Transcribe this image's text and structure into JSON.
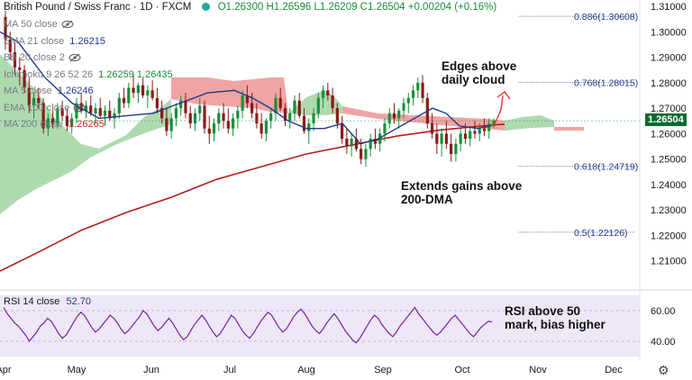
{
  "header": {
    "symbol": "British Pound / Swiss Franc · 1D · FXCM",
    "ohlc": "O1.26300 H1.26596 L1.26209 C1.26504 +0.00204 (+0.16%)"
  },
  "legend": [
    {
      "label": "MA 50 close",
      "value": "",
      "value_class": "val-dark",
      "icon": "eye-slash-icon"
    },
    {
      "label": "EMA 21 close",
      "value": "1.26215",
      "value_class": "val-blue",
      "icon": ""
    },
    {
      "label": "BB 20 close 2",
      "value": "",
      "value_class": "val-dark",
      "icon": "eye-slash-icon"
    },
    {
      "label": "Ichimoku 9 26 52 26",
      "value": "1.26259  1.26435",
      "value_class": "val-green",
      "icon": ""
    },
    {
      "label": "MA 5 close",
      "value": "1.26246",
      "value_class": "val-blue",
      "icon": ""
    },
    {
      "label": "EMA 100 close",
      "value": "",
      "value_class": "val-dark",
      "icon": "eye-slash-icon"
    },
    {
      "label": "MA 200 close",
      "value": "1.26265",
      "value_class": "val-red",
      "icon": ""
    }
  ],
  "rsi_legend": {
    "label": "RSI 14 close",
    "value": "52.70"
  },
  "annotations": {
    "cloud": "Edges above\ndaily cloud",
    "dma": "Extends gains above\n200-DMA",
    "rsi": "RSI above 50\nmark, bias higher"
  },
  "colors": {
    "bull": "#1a8f3a",
    "bear": "#8b1a1a",
    "ema21": "#1e3a8a",
    "ma200": "#b71c1c",
    "cloud_bull": "#a5d6a7",
    "cloud_bear": "#ef9a9a",
    "rsi_line": "#7b1fa2",
    "rsi_band": "#ede7f6",
    "fib": "#1e3a8a",
    "price_badge": "#0b6b2e"
  },
  "chart_data": {
    "type": "candlestick",
    "x_months": [
      "Apr",
      "May",
      "Jun",
      "Jul",
      "Aug",
      "Sep",
      "Oct",
      "Nov",
      "Dec"
    ],
    "y_ticks": [
      1.21,
      1.22,
      1.23,
      1.24,
      1.25,
      1.26,
      1.27,
      1.28,
      1.29,
      1.3,
      1.31
    ],
    "ylim": [
      1.2,
      1.3125
    ],
    "last_price": "1.26504",
    "fib_levels": [
      {
        "label": "0.886(1.30608)",
        "value": 1.30608
      },
      {
        "label": "0.768(1.28015)",
        "value": 1.28015
      },
      {
        "label": "0.618(1.24719)",
        "value": 1.24719
      },
      {
        "label": "0.5(1.22126)",
        "value": 1.22126
      }
    ],
    "ma200": {
      "name": "MA 200",
      "points": [
        [
          0,
          1.206
        ],
        [
          40,
          1.213
        ],
        [
          90,
          1.222
        ],
        [
          140,
          1.229
        ],
        [
          190,
          1.235
        ],
        [
          240,
          1.242
        ],
        [
          290,
          1.247
        ],
        [
          340,
          1.252
        ],
        [
          390,
          1.2555
        ],
        [
          440,
          1.259
        ],
        [
          490,
          1.2615
        ],
        [
          550,
          1.2635
        ],
        [
          560,
          1.2637
        ]
      ]
    },
    "ema21": {
      "name": "EMA 21",
      "points": [
        [
          0,
          1.3
        ],
        [
          20,
          1.296
        ],
        [
          50,
          1.282
        ],
        [
          80,
          1.272
        ],
        [
          110,
          1.266
        ],
        [
          140,
          1.267
        ],
        [
          170,
          1.268
        ],
        [
          200,
          1.272
        ],
        [
          230,
          1.276
        ],
        [
          260,
          1.277
        ],
        [
          280,
          1.274
        ],
        [
          300,
          1.27
        ],
        [
          320,
          1.265
        ],
        [
          340,
          1.262
        ],
        [
          360,
          1.262
        ],
        [
          380,
          1.264
        ],
        [
          400,
          1.256
        ],
        [
          420,
          1.258
        ],
        [
          440,
          1.262
        ],
        [
          460,
          1.266
        ],
        [
          480,
          1.27
        ],
        [
          495,
          1.268
        ],
        [
          510,
          1.263
        ],
        [
          530,
          1.262
        ],
        [
          545,
          1.263
        ]
      ]
    },
    "rsi": {
      "ylim": [
        30,
        70
      ],
      "ticks": [
        40,
        60
      ],
      "band": [
        30,
        70
      ],
      "last": 52.7,
      "values": [
        62,
        58,
        55,
        52,
        50,
        47,
        44,
        40,
        43,
        46,
        50,
        52,
        55,
        53,
        49,
        45,
        42,
        44,
        48,
        52,
        56,
        59,
        57,
        53,
        49,
        46,
        48,
        51,
        54,
        57,
        55,
        52,
        48,
        45,
        47,
        50,
        53,
        56,
        60,
        58,
        54,
        50,
        47,
        49,
        52,
        55,
        52,
        48,
        44,
        41,
        43,
        47,
        51,
        54,
        57,
        54,
        50,
        46,
        43,
        45,
        49,
        53,
        57,
        55,
        51,
        47,
        44,
        42,
        45,
        49,
        53,
        56,
        59,
        57,
        53,
        49,
        46,
        48,
        52,
        56,
        59,
        61,
        58,
        54,
        50,
        47,
        45,
        48,
        52,
        55,
        58,
        55,
        51,
        47,
        44,
        41,
        39,
        42,
        46,
        50,
        54,
        57,
        55,
        51,
        48,
        45,
        43,
        46,
        50,
        53,
        56,
        59,
        62,
        58,
        55,
        52,
        49,
        46,
        44,
        46,
        49,
        52,
        55,
        57,
        54,
        51,
        48,
        45,
        43,
        46,
        49,
        51,
        53,
        52.7
      ]
    },
    "candles": [
      [
        1.3058,
        1.3082,
        1.293,
        1.297
      ],
      [
        1.297,
        1.3,
        1.289,
        1.292
      ],
      [
        1.292,
        1.296,
        1.283,
        1.286
      ],
      [
        1.286,
        1.29,
        1.279,
        1.285
      ],
      [
        1.285,
        1.287,
        1.276,
        1.278
      ],
      [
        1.278,
        1.282,
        1.268,
        1.271
      ],
      [
        1.271,
        1.276,
        1.266,
        1.274
      ],
      [
        1.274,
        1.278,
        1.27,
        1.272
      ],
      [
        1.272,
        1.274,
        1.26,
        1.262
      ],
      [
        1.262,
        1.268,
        1.259,
        1.266
      ],
      [
        1.266,
        1.27,
        1.262,
        1.264
      ],
      [
        1.264,
        1.272,
        1.262,
        1.27
      ],
      [
        1.27,
        1.273,
        1.265,
        1.267
      ],
      [
        1.267,
        1.27,
        1.261,
        1.263
      ],
      [
        1.263,
        1.268,
        1.26,
        1.266
      ],
      [
        1.266,
        1.274,
        1.264,
        1.272
      ],
      [
        1.272,
        1.276,
        1.268,
        1.269
      ],
      [
        1.269,
        1.273,
        1.266,
        1.271
      ],
      [
        1.271,
        1.275,
        1.267,
        1.268
      ],
      [
        1.268,
        1.272,
        1.264,
        1.27
      ],
      [
        1.27,
        1.274,
        1.266,
        1.267
      ],
      [
        1.267,
        1.271,
        1.263,
        1.269
      ],
      [
        1.269,
        1.273,
        1.265,
        1.266
      ],
      [
        1.266,
        1.27,
        1.262,
        1.268
      ],
      [
        1.268,
        1.276,
        1.266,
        1.274
      ],
      [
        1.274,
        1.278,
        1.27,
        1.272
      ],
      [
        1.272,
        1.28,
        1.27,
        1.278
      ],
      [
        1.278,
        1.283,
        1.274,
        1.276
      ],
      [
        1.276,
        1.28,
        1.272,
        1.279
      ],
      [
        1.279,
        1.282,
        1.274,
        1.275
      ],
      [
        1.275,
        1.279,
        1.27,
        1.277
      ],
      [
        1.277,
        1.281,
        1.273,
        1.274
      ],
      [
        1.274,
        1.278,
        1.268,
        1.27
      ],
      [
        1.27,
        1.273,
        1.264,
        1.266
      ],
      [
        1.266,
        1.27,
        1.259,
        1.261
      ],
      [
        1.261,
        1.268,
        1.258,
        1.266
      ],
      [
        1.266,
        1.272,
        1.263,
        1.27
      ],
      [
        1.27,
        1.275,
        1.267,
        1.273
      ],
      [
        1.273,
        1.276,
        1.266,
        1.268
      ],
      [
        1.268,
        1.271,
        1.262,
        1.264
      ],
      [
        1.264,
        1.27,
        1.261,
        1.268
      ],
      [
        1.268,
        1.274,
        1.265,
        1.271
      ],
      [
        1.271,
        1.273,
        1.26,
        1.262
      ],
      [
        1.262,
        1.267,
        1.256,
        1.26
      ],
      [
        1.26,
        1.266,
        1.257,
        1.264
      ],
      [
        1.264,
        1.27,
        1.261,
        1.268
      ],
      [
        1.268,
        1.272,
        1.262,
        1.265
      ],
      [
        1.265,
        1.27,
        1.26,
        1.262
      ],
      [
        1.262,
        1.268,
        1.259,
        1.266
      ],
      [
        1.266,
        1.271,
        1.262,
        1.269
      ],
      [
        1.269,
        1.277,
        1.266,
        1.275
      ],
      [
        1.275,
        1.279,
        1.27,
        1.272
      ],
      [
        1.272,
        1.276,
        1.266,
        1.268
      ],
      [
        1.268,
        1.272,
        1.262,
        1.264
      ],
      [
        1.264,
        1.268,
        1.258,
        1.26
      ],
      [
        1.26,
        1.266,
        1.257,
        1.265
      ],
      [
        1.265,
        1.27,
        1.262,
        1.268
      ],
      [
        1.268,
        1.276,
        1.265,
        1.274
      ],
      [
        1.274,
        1.278,
        1.269,
        1.27
      ],
      [
        1.27,
        1.272,
        1.263,
        1.265
      ],
      [
        1.265,
        1.27,
        1.262,
        1.268
      ],
      [
        1.268,
        1.275,
        1.265,
        1.273
      ],
      [
        1.273,
        1.276,
        1.266,
        1.267
      ],
      [
        1.267,
        1.27,
        1.26,
        1.261
      ],
      [
        1.261,
        1.266,
        1.256,
        1.264
      ],
      [
        1.264,
        1.27,
        1.261,
        1.268
      ],
      [
        1.268,
        1.276,
        1.266,
        1.274
      ],
      [
        1.274,
        1.279,
        1.27,
        1.277
      ],
      [
        1.277,
        1.28,
        1.273,
        1.275
      ],
      [
        1.275,
        1.278,
        1.268,
        1.27
      ],
      [
        1.27,
        1.272,
        1.262,
        1.264
      ],
      [
        1.264,
        1.267,
        1.256,
        1.258
      ],
      [
        1.258,
        1.262,
        1.252,
        1.255
      ],
      [
        1.255,
        1.26,
        1.251,
        1.258
      ],
      [
        1.258,
        1.262,
        1.253,
        1.254
      ],
      [
        1.254,
        1.258,
        1.248,
        1.25
      ],
      [
        1.25,
        1.256,
        1.247,
        1.254
      ],
      [
        1.254,
        1.26,
        1.251,
        1.258
      ],
      [
        1.258,
        1.262,
        1.254,
        1.256
      ],
      [
        1.256,
        1.262,
        1.253,
        1.26
      ],
      [
        1.26,
        1.266,
        1.257,
        1.264
      ],
      [
        1.264,
        1.27,
        1.262,
        1.268
      ],
      [
        1.268,
        1.272,
        1.264,
        1.266
      ],
      [
        1.266,
        1.27,
        1.262,
        1.269
      ],
      [
        1.269,
        1.274,
        1.266,
        1.272
      ],
      [
        1.272,
        1.276,
        1.268,
        1.274
      ],
      [
        1.274,
        1.279,
        1.271,
        1.277
      ],
      [
        1.277,
        1.282,
        1.274,
        1.28
      ],
      [
        1.28,
        1.283,
        1.272,
        1.274
      ],
      [
        1.274,
        1.276,
        1.262,
        1.264
      ],
      [
        1.264,
        1.268,
        1.258,
        1.26
      ],
      [
        1.26,
        1.264,
        1.252,
        1.256
      ],
      [
        1.256,
        1.262,
        1.251,
        1.26
      ],
      [
        1.26,
        1.265,
        1.254,
        1.256
      ],
      [
        1.256,
        1.26,
        1.249,
        1.252
      ],
      [
        1.252,
        1.258,
        1.249,
        1.256
      ],
      [
        1.256,
        1.262,
        1.253,
        1.26
      ],
      [
        1.26,
        1.264,
        1.256,
        1.258
      ],
      [
        1.258,
        1.263,
        1.255,
        1.261
      ],
      [
        1.261,
        1.265,
        1.258,
        1.26
      ],
      [
        1.26,
        1.264,
        1.257,
        1.262
      ],
      [
        1.262,
        1.266,
        1.259,
        1.261
      ],
      [
        1.261,
        1.266,
        1.258,
        1.264
      ],
      [
        1.263,
        1.266,
        1.2621,
        1.265
      ]
    ]
  }
}
